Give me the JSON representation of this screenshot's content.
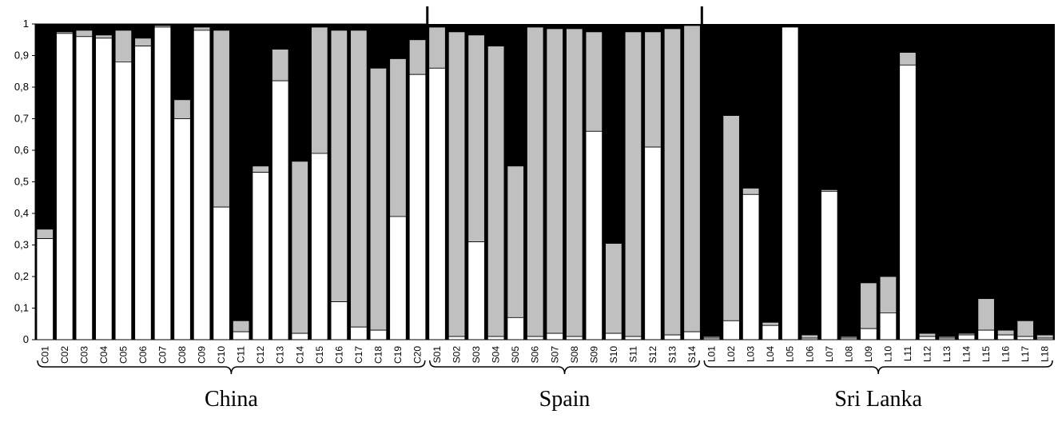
{
  "chart_data": {
    "type": "bar",
    "stacked": true,
    "stack_order": [
      "white",
      "gray",
      "black"
    ],
    "ylim": [
      0,
      1
    ],
    "yticks": [
      "0",
      "0,1",
      "0,2",
      "0,3",
      "0,4",
      "0,5",
      "0,6",
      "0,7",
      "0,8",
      "0,9",
      "1"
    ],
    "grid": false,
    "legend": "none",
    "colors": {
      "white": "#ffffff",
      "gray": "#c0c0c0",
      "black": "#000000"
    },
    "groups": [
      {
        "label": "China",
        "categories": [
          "C01",
          "C02",
          "C03",
          "C04",
          "C05",
          "C06",
          "C07",
          "C08",
          "C09",
          "C10",
          "C11",
          "C12",
          "C13",
          "C14",
          "C15",
          "C16",
          "C17",
          "C18",
          "C19",
          "C20"
        ],
        "white": [
          0.32,
          0.97,
          0.96,
          0.955,
          0.88,
          0.93,
          0.99,
          0.7,
          0.98,
          0.42,
          0.025,
          0.53,
          0.82,
          0.02,
          0.59,
          0.12,
          0.04,
          0.03,
          0.39,
          0.84
        ],
        "gray": [
          0.03,
          0.005,
          0.02,
          0.01,
          0.1,
          0.025,
          0.005,
          0.06,
          0.01,
          0.56,
          0.035,
          0.02,
          0.1,
          0.545,
          0.4,
          0.86,
          0.94,
          0.83,
          0.5,
          0.11
        ]
      },
      {
        "label": "Spain",
        "categories": [
          "S01",
          "S02",
          "S03",
          "S04",
          "S05",
          "S06",
          "S07",
          "S08",
          "S09",
          "S10",
          "S11",
          "S12",
          "S13",
          "S14"
        ],
        "white": [
          0.86,
          0.01,
          0.31,
          0.01,
          0.07,
          0.01,
          0.02,
          0.01,
          0.66,
          0.02,
          0.01,
          0.61,
          0.015,
          0.025
        ],
        "gray": [
          0.13,
          0.965,
          0.655,
          0.92,
          0.48,
          0.98,
          0.965,
          0.975,
          0.315,
          0.285,
          0.965,
          0.365,
          0.97,
          0.97
        ]
      },
      {
        "label": "Sri Lanka",
        "categories": [
          "L01",
          "L02",
          "L03",
          "L04",
          "L05",
          "L06",
          "L07",
          "L08",
          "L09",
          "L10",
          "L11",
          "L12",
          "L13",
          "L14",
          "L15",
          "L16",
          "L17",
          "L18"
        ],
        "white": [
          0.005,
          0.06,
          0.46,
          0.045,
          0.99,
          0.005,
          0.47,
          0.005,
          0.035,
          0.085,
          0.87,
          0.01,
          0.005,
          0.015,
          0.03,
          0.015,
          0.01,
          0.005
        ],
        "gray": [
          0.005,
          0.65,
          0.02,
          0.01,
          0.0,
          0.01,
          0.005,
          0.005,
          0.145,
          0.115,
          0.04,
          0.01,
          0.005,
          0.005,
          0.1,
          0.015,
          0.05,
          0.01
        ]
      }
    ]
  }
}
